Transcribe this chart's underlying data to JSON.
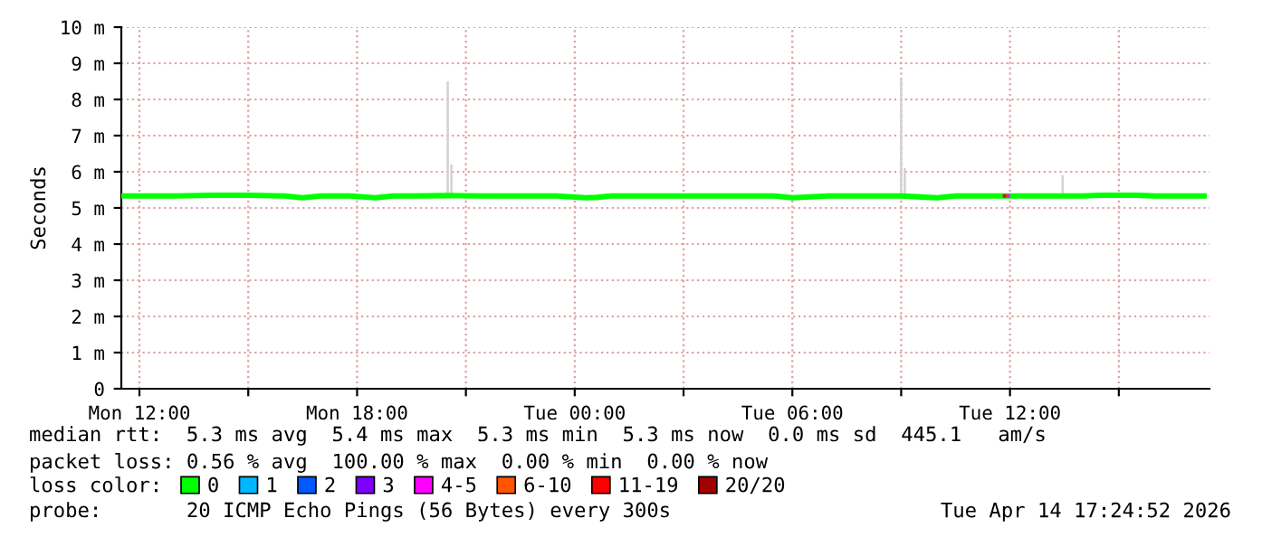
{
  "chart_data": {
    "type": "line",
    "ylabel": "Seconds",
    "xlim": [
      "2026-04-13T11:30",
      "2026-04-14T17:30"
    ],
    "xticks": [
      {
        "value": "2026-04-13T12:00",
        "label": "Mon 12:00"
      },
      {
        "value": "2026-04-13T15:00",
        "label": null
      },
      {
        "value": "2026-04-13T18:00",
        "label": "Mon 18:00"
      },
      {
        "value": "2026-04-13T21:00",
        "label": null
      },
      {
        "value": "2026-04-14T00:00",
        "label": "Tue 00:00"
      },
      {
        "value": "2026-04-14T03:00",
        "label": null
      },
      {
        "value": "2026-04-14T06:00",
        "label": "Tue 06:00"
      },
      {
        "value": "2026-04-14T09:00",
        "label": null
      },
      {
        "value": "2026-04-14T12:00",
        "label": "Tue 12:00"
      },
      {
        "value": "2026-04-14T15:00",
        "label": null
      }
    ],
    "ylim": [
      0,
      10
    ],
    "yticks": [
      0,
      {
        "value": 1,
        "label": "1 m"
      },
      {
        "value": 2,
        "label": "2 m"
      },
      {
        "value": 3,
        "label": "3 m"
      },
      {
        "value": 4,
        "label": "4 m"
      },
      {
        "value": 5,
        "label": "5 m"
      },
      {
        "value": 6,
        "label": "6 m"
      },
      {
        "value": 7,
        "label": "7 m"
      },
      {
        "value": 8,
        "label": "8 m"
      },
      {
        "value": 9,
        "label": "9 m"
      },
      {
        "value": 10,
        "label": "10 m"
      }
    ],
    "grid": true,
    "legend": "bottom",
    "legend_title": "loss color:",
    "series": [
      {
        "type": "bar",
        "color": "#d0d0d0",
        "base": [
          5.4,
          5.4,
          5.4,
          5.4,
          5.4
        ],
        "x": [
          "2026-04-13T20:30",
          "2026-04-13T20:36",
          "2026-04-14T09:00",
          "2026-04-14T09:06",
          "2026-04-14T13:27"
        ],
        "values": [
          3.1,
          0.8,
          3.2,
          0.7,
          0.5
        ]
      },
      {
        "name": "0",
        "color": "#00ff00",
        "x": [
          "2026-04-13T11:33",
          "2026-04-13T12:30",
          "2026-04-13T13:00",
          "2026-04-13T14:00",
          "2026-04-13T15:00",
          "2026-04-13T16:00",
          "2026-04-13T16:30",
          "2026-04-13T17:00",
          "2026-04-13T17:48",
          "2026-04-13T18:30",
          "2026-04-13T19:00",
          "2026-04-13T19:30",
          "2026-04-13T20:30",
          "2026-04-13T21:30",
          "2026-04-13T22:30",
          "2026-04-13T23:30",
          "2026-04-14T00:18",
          "2026-04-14T00:36",
          "2026-04-14T01:00",
          "2026-04-14T02:00",
          "2026-04-14T03:00",
          "2026-04-14T04:00",
          "2026-04-14T04:30",
          "2026-04-14T05:00",
          "2026-04-14T05:30",
          "2026-04-14T06:00",
          "2026-04-14T07:00",
          "2026-04-14T08:00",
          "2026-04-14T08:30",
          "2026-04-14T09:00",
          "2026-04-14T10:00",
          "2026-04-14T10:30",
          "2026-04-14T11:00",
          "2026-04-14T11:30",
          "2026-04-14T11:54",
          "2026-04-14T12:30",
          "2026-04-14T13:00",
          "2026-04-14T14:00",
          "2026-04-14T14:30",
          "2026-04-14T15:00",
          "2026-04-14T15:30",
          "2026-04-14T16:00",
          "2026-04-14T17:00",
          "2026-04-14T17:21"
        ],
        "values": [
          5.33,
          5.33,
          5.33,
          5.35,
          5.35,
          5.33,
          5.28,
          5.33,
          5.33,
          5.28,
          5.33,
          5.33,
          5.34,
          5.33,
          5.33,
          5.33,
          5.28,
          5.29,
          5.33,
          5.33,
          5.33,
          5.33,
          5.33,
          5.33,
          5.33,
          5.28,
          5.33,
          5.33,
          5.33,
          5.33,
          5.28,
          5.33,
          5.33,
          5.33,
          5.33,
          5.33,
          5.33,
          5.33,
          5.35,
          5.35,
          5.35,
          5.33,
          5.33,
          5.33
        ]
      },
      {
        "name": "1",
        "color": "#00b8ff"
      },
      {
        "name": "2",
        "color": "#0059ff"
      },
      {
        "name": "3",
        "color": "#7e00ff"
      },
      {
        "name": "4-5",
        "type": "scatter",
        "color": "#ff00ff",
        "x": [
          "2026-04-14T11:57"
        ],
        "values": [
          5.33
        ]
      },
      {
        "name": "6-10",
        "color": "#ff5500"
      },
      {
        "name": "11-19",
        "type": "scatter",
        "color": "#ff0000",
        "x": [
          "2026-04-14T11:51"
        ],
        "values": [
          5.33
        ]
      },
      {
        "name": "20/20",
        "color": "#a10000"
      }
    ],
    "annotations": [
      "median rtt:  5.3 ms avg  5.4 ms max  5.3 ms min  5.3 ms now  0.0 ms sd  445.1   am/s",
      "packet loss: 0.56 % avg  100.00 % max  0.00 % min  0.00 % now",
      "probe:       20 ICMP Echo Pings (56 Bytes) every 300s",
      "Tue Apr 14 17:24:52 2026"
    ]
  }
}
